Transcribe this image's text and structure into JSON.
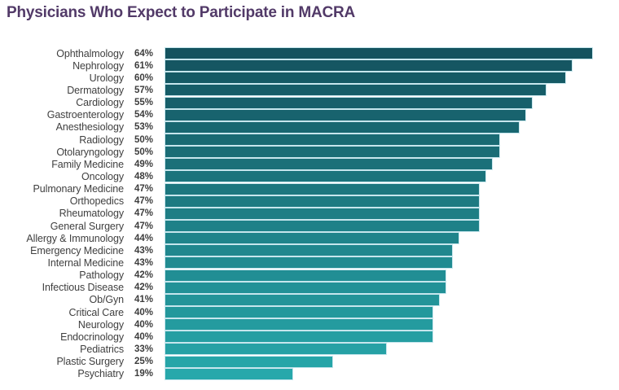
{
  "title": "Physicians Who Expect to Participate in MACRA",
  "chart_data": {
    "type": "bar",
    "orientation": "horizontal",
    "title": "Physicians Who Expect to Participate in MACRA",
    "xlabel": "",
    "ylabel": "",
    "xlim": [
      0,
      66
    ],
    "grid": false,
    "legend": false,
    "value_suffix": "%",
    "categories": [
      "Ophthalmology",
      "Nephrology",
      "Urology",
      "Dermatology",
      "Cardiology",
      "Gastroenterology",
      "Anesthesiology",
      "Radiology",
      "Otolaryngology",
      "Family Medicine",
      "Oncology",
      "Pulmonary Medicine",
      "Orthopedics",
      "Rheumatology",
      "General Surgery",
      "Allergy & Immunology",
      "Emergency Medicine",
      "Internal Medicine",
      "Pathology",
      "Infectious Disease",
      "Ob/Gyn",
      "Critical Care",
      "Neurology",
      "Endocrinology",
      "Pediatrics",
      "Plastic Surgery",
      "Psychiatry"
    ],
    "values": [
      64,
      61,
      60,
      57,
      55,
      54,
      53,
      50,
      50,
      49,
      48,
      47,
      47,
      47,
      47,
      44,
      43,
      43,
      42,
      42,
      41,
      40,
      40,
      40,
      33,
      25,
      19
    ],
    "display_values": [
      "64%",
      "61%",
      "60%",
      "57%",
      "55%",
      "54%",
      "53%",
      "50%",
      "50%",
      "49%",
      "48%",
      "47%",
      "47%",
      "47%",
      "47%",
      "44%",
      "43%",
      "43%",
      "42%",
      "42%",
      "41%",
      "40%",
      "40%",
      "40%",
      "33%",
      "25%",
      "19%"
    ],
    "colors": {
      "title": "#523a68",
      "label_text": "#3f3f3f",
      "bar_gradient_top": "#14535f",
      "bar_gradient_bottom": "#27a8ab",
      "bar_border": "#c6e6ed",
      "background": "#ffffff"
    }
  }
}
